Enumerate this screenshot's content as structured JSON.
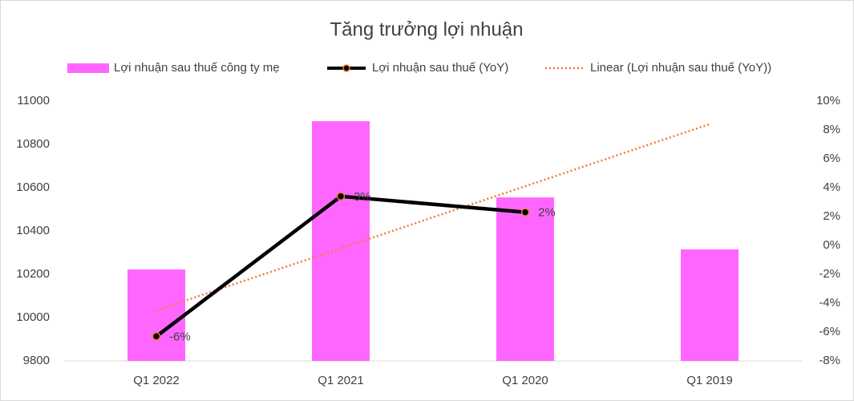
{
  "chart_data": {
    "type": "bar-line",
    "title": "Tăng trưởng lợi nhuận",
    "categories": [
      "Q1 2022",
      "Q1 2021",
      "Q1 2020",
      "Q1 2019"
    ],
    "series": [
      {
        "name": "Lợi nhuận sau thuế công ty mẹ",
        "type": "bar",
        "color": "#ff66ff",
        "values": [
          10222,
          10907,
          10555,
          10315
        ]
      },
      {
        "name": "Lợi nhuận sau thuế (YoY)",
        "type": "line",
        "axis": "y2",
        "color": "#000000",
        "marker_color": "#ed7d31",
        "values": [
          -6.3,
          3.4,
          2.3,
          null
        ],
        "value_labels": [
          "-6%",
          "3%",
          "2%",
          null
        ]
      },
      {
        "name": "Linear (Lợi nhuận sau thuế (YoY))",
        "type": "trend",
        "axis": "y2",
        "color": "#ed7d31",
        "values": [
          -4.5,
          -0.2,
          4.1,
          8.4
        ]
      }
    ],
    "ylim": [
      9800,
      11000
    ],
    "yticks": [
      9800,
      10000,
      10200,
      10400,
      10600,
      10800,
      11000
    ],
    "y2lim": [
      -8,
      10
    ],
    "y2ticks": [
      {
        "value": -8,
        "label": "-8%"
      },
      {
        "value": -6,
        "label": "-6%"
      },
      {
        "value": -4,
        "label": "-4%"
      },
      {
        "value": -2,
        "label": "-2%"
      },
      {
        "value": 0,
        "label": "0%"
      },
      {
        "value": 2,
        "label": "2%"
      },
      {
        "value": 4,
        "label": "4%"
      },
      {
        "value": 6,
        "label": "6%"
      },
      {
        "value": 8,
        "label": "8%"
      },
      {
        "value": 10,
        "label": "10%"
      }
    ],
    "legend": "top",
    "grid": false
  }
}
